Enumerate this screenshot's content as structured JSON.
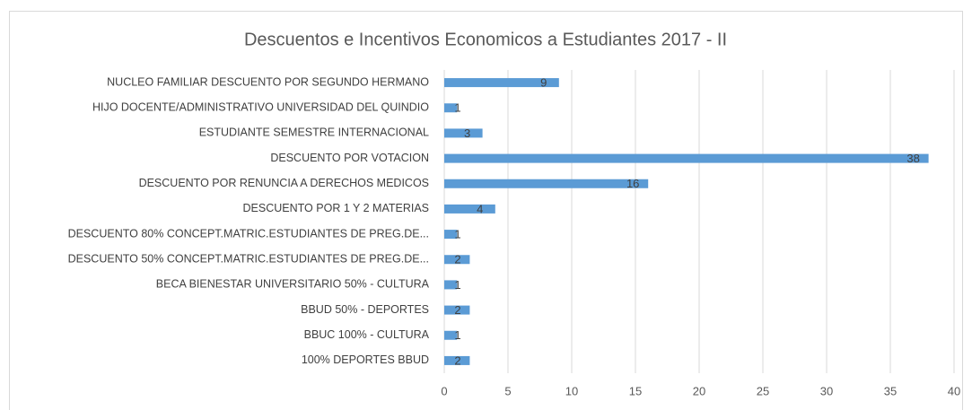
{
  "chart_data": {
    "type": "bar",
    "orientation": "horizontal",
    "title": "Descuentos e Incentivos Economicos a Estudiantes 2017 - II",
    "categories": [
      "NUCLEO FAMILIAR DESCUENTO POR SEGUNDO HERMANO",
      "HIJO DOCENTE/ADMINISTRATIVO UNIVERSIDAD DEL QUINDIO",
      "ESTUDIANTE SEMESTRE INTERNACIONAL",
      "DESCUENTO POR VOTACION",
      "DESCUENTO POR RENUNCIA A  DERECHOS MEDICOS",
      "DESCUENTO POR 1 Y 2 MATERIAS",
      "DESCUENTO 80% CONCEPT.MATRIC.ESTUDIANTES DE PREG.DE...",
      "DESCUENTO 50% CONCEPT.MATRIC.ESTUDIANTES DE PREG.DE...",
      "BECA BIENESTAR UNIVERSITARIO 50% - CULTURA",
      "BBUD 50% - DEPORTES",
      "BBUC 100% - CULTURA",
      "100% DEPORTES BBUD"
    ],
    "values": [
      9,
      1,
      3,
      38,
      16,
      4,
      1,
      2,
      1,
      2,
      1,
      2
    ],
    "color": "#5b9bd5",
    "xlim": [
      0,
      40
    ],
    "xticks": [
      0,
      5,
      10,
      15,
      20,
      25,
      30,
      35,
      40
    ],
    "grid": true
  }
}
